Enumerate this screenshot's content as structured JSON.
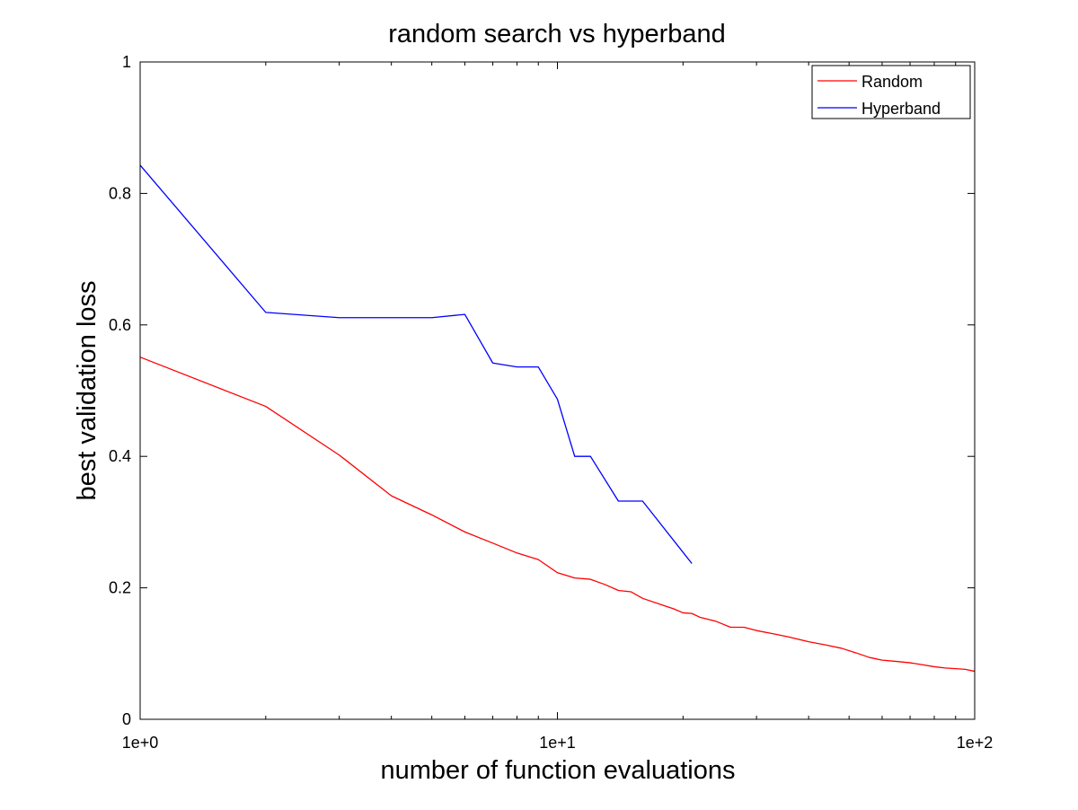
{
  "chart_data": {
    "type": "line",
    "title": "random search vs hyperband",
    "xlabel": "number of function evaluations",
    "ylabel": "best validation loss",
    "xscale": "log",
    "xlim": [
      1,
      100
    ],
    "ylim": [
      0,
      1
    ],
    "xticks": [
      {
        "value": 1,
        "label": "1e+0"
      },
      {
        "value": 10,
        "label": "1e+1"
      },
      {
        "value": 100,
        "label": "1e+2"
      }
    ],
    "yticks": [
      {
        "value": 0,
        "label": "0"
      },
      {
        "value": 0.2,
        "label": "0.2"
      },
      {
        "value": 0.4,
        "label": "0.4"
      },
      {
        "value": 0.6,
        "label": "0.6"
      },
      {
        "value": 0.8,
        "label": "0.8"
      },
      {
        "value": 1,
        "label": "1"
      }
    ],
    "grid": false,
    "legend_position": "top-right",
    "series": [
      {
        "name": "Random",
        "color": "#ff0000",
        "points": [
          [
            1,
            0.551
          ],
          [
            2,
            0.476
          ],
          [
            3,
            0.402
          ],
          [
            4,
            0.34
          ],
          [
            5,
            0.311
          ],
          [
            6,
            0.285
          ],
          [
            7,
            0.268
          ],
          [
            8,
            0.253
          ],
          [
            9,
            0.243
          ],
          [
            10,
            0.223
          ],
          [
            11,
            0.215
          ],
          [
            12,
            0.213
          ],
          [
            13,
            0.205
          ],
          [
            14,
            0.196
          ],
          [
            15,
            0.194
          ],
          [
            16,
            0.184
          ],
          [
            18,
            0.173
          ],
          [
            19,
            0.168
          ],
          [
            20,
            0.162
          ],
          [
            21,
            0.161
          ],
          [
            22,
            0.155
          ],
          [
            24,
            0.149
          ],
          [
            26,
            0.14
          ],
          [
            28,
            0.14
          ],
          [
            30,
            0.135
          ],
          [
            33,
            0.13
          ],
          [
            36,
            0.125
          ],
          [
            40,
            0.118
          ],
          [
            44,
            0.113
          ],
          [
            48,
            0.108
          ],
          [
            52,
            0.101
          ],
          [
            56,
            0.094
          ],
          [
            60,
            0.09
          ],
          [
            65,
            0.088
          ],
          [
            70,
            0.086
          ],
          [
            75,
            0.083
          ],
          [
            80,
            0.08
          ],
          [
            85,
            0.078
          ],
          [
            90,
            0.077
          ],
          [
            95,
            0.076
          ],
          [
            100,
            0.073
          ]
        ]
      },
      {
        "name": "Hyperband",
        "color": "#0000ff",
        "points": [
          [
            1,
            0.843
          ],
          [
            2,
            0.619
          ],
          [
            3,
            0.611
          ],
          [
            5,
            0.611
          ],
          [
            6,
            0.616
          ],
          [
            7,
            0.542
          ],
          [
            8,
            0.536
          ],
          [
            9,
            0.536
          ],
          [
            10,
            0.487
          ],
          [
            11,
            0.4
          ],
          [
            12,
            0.4
          ],
          [
            14,
            0.332
          ],
          [
            16,
            0.332
          ],
          [
            21,
            0.237
          ]
        ]
      }
    ]
  }
}
